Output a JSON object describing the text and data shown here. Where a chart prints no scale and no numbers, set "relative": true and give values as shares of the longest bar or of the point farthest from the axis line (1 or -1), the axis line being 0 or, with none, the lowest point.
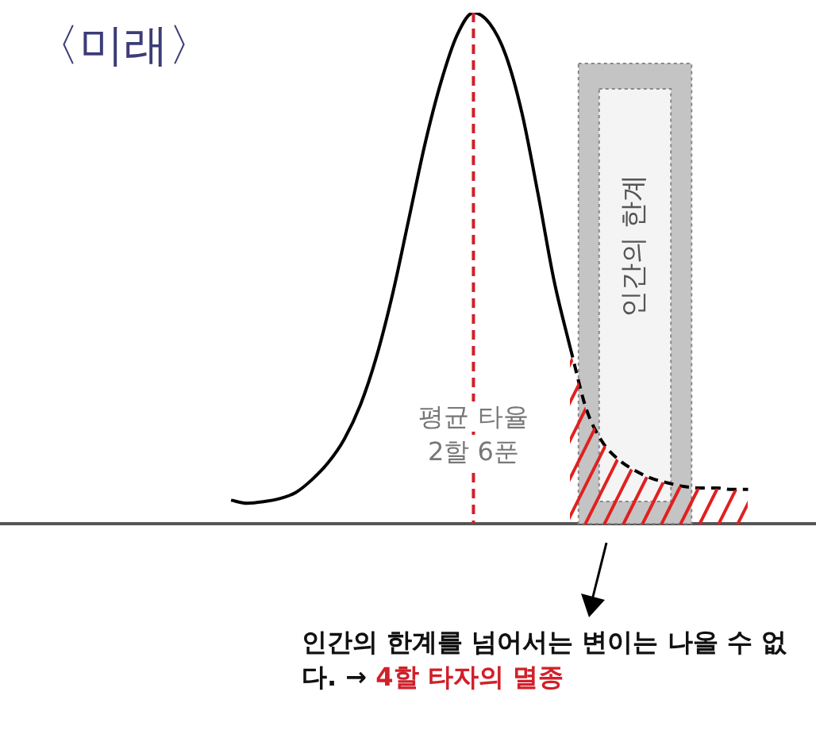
{
  "chart_data": {
    "type": "line",
    "relative": true,
    "title": "〈미래〉",
    "categories": [
      null,
      null,
      null,
      null,
      null,
      null,
      null,
      null,
      null,
      null,
      null,
      null,
      null,
      null,
      null,
      null,
      null,
      null,
      null,
      null,
      null,
      null,
      null,
      null,
      null,
      null,
      null,
      null,
      null,
      null,
      null,
      null,
      null
    ],
    "series": [
      {
        "type": "line",
        "color": "#000000",
        "line_style": "solid",
        "values": [
          0.046,
          0.04,
          0.043,
          0.049,
          0.061,
          0.086,
          0.119,
          0.165,
          0.232,
          0.327,
          0.45,
          0.596,
          0.743,
          0.865,
          0.957,
          1,
          0.979,
          0.917,
          0.804,
          0.645,
          0.474,
          0.343,
          null,
          null,
          null,
          null,
          null,
          null,
          null,
          null,
          null,
          null,
          null
        ]
      },
      {
        "type": "line",
        "color": "#000000",
        "line_style": "dashed",
        "values": [
          null,
          null,
          null,
          null,
          null,
          null,
          null,
          null,
          null,
          null,
          null,
          null,
          null,
          null,
          null,
          null,
          null,
          null,
          null,
          null,
          null,
          0.343,
          0.223,
          0.159,
          0.125,
          0.104,
          0.089,
          0.08,
          0.073,
          0.07,
          0.07,
          0.067,
          0.067
        ]
      }
    ],
    "annotations": [
      "평균 타율 2할 6푼",
      "인간의 한계",
      "인간의 한계를 넘어서는 변이는 나올 수 없다. →",
      "4할 타자의 멸종"
    ]
  }
}
